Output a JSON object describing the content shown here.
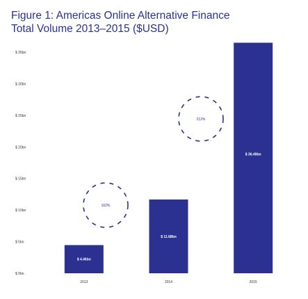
{
  "title_line1": "Figure 1: Americas Online Alternative Finance",
  "title_line2": "Total Volume 2013–2015 ($USD)",
  "chart_data": {
    "type": "bar",
    "title": "Figure 1: Americas Online Alternative Finance Total Volume 2013–2015 ($USD)",
    "xlabel": "",
    "ylabel": "",
    "categories": [
      "2013",
      "2014",
      "2015"
    ],
    "values": [
      4.46,
      11.68,
      36.49
    ],
    "value_labels": [
      "$ 4.46bn",
      "$ 11.68bn",
      "$ 36.49bn"
    ],
    "ylim": [
      0,
      35
    ],
    "y_ticks": [
      0,
      5,
      10,
      15,
      20,
      25,
      30,
      35
    ],
    "y_tick_labels": [
      "$ 0bn",
      "$ 5bn",
      "$ 10bn",
      "$ 15bn",
      "$ 20bn",
      "$ 25bn",
      "$ 30bn",
      "$ 35bn"
    ],
    "grid": false,
    "legend": "none",
    "bar_color": "#2b3190",
    "annotations": [
      {
        "text": "162%",
        "between": [
          "2013",
          "2014"
        ]
      },
      {
        "text": "212%",
        "between": [
          "2014",
          "2015"
        ]
      }
    ]
  }
}
